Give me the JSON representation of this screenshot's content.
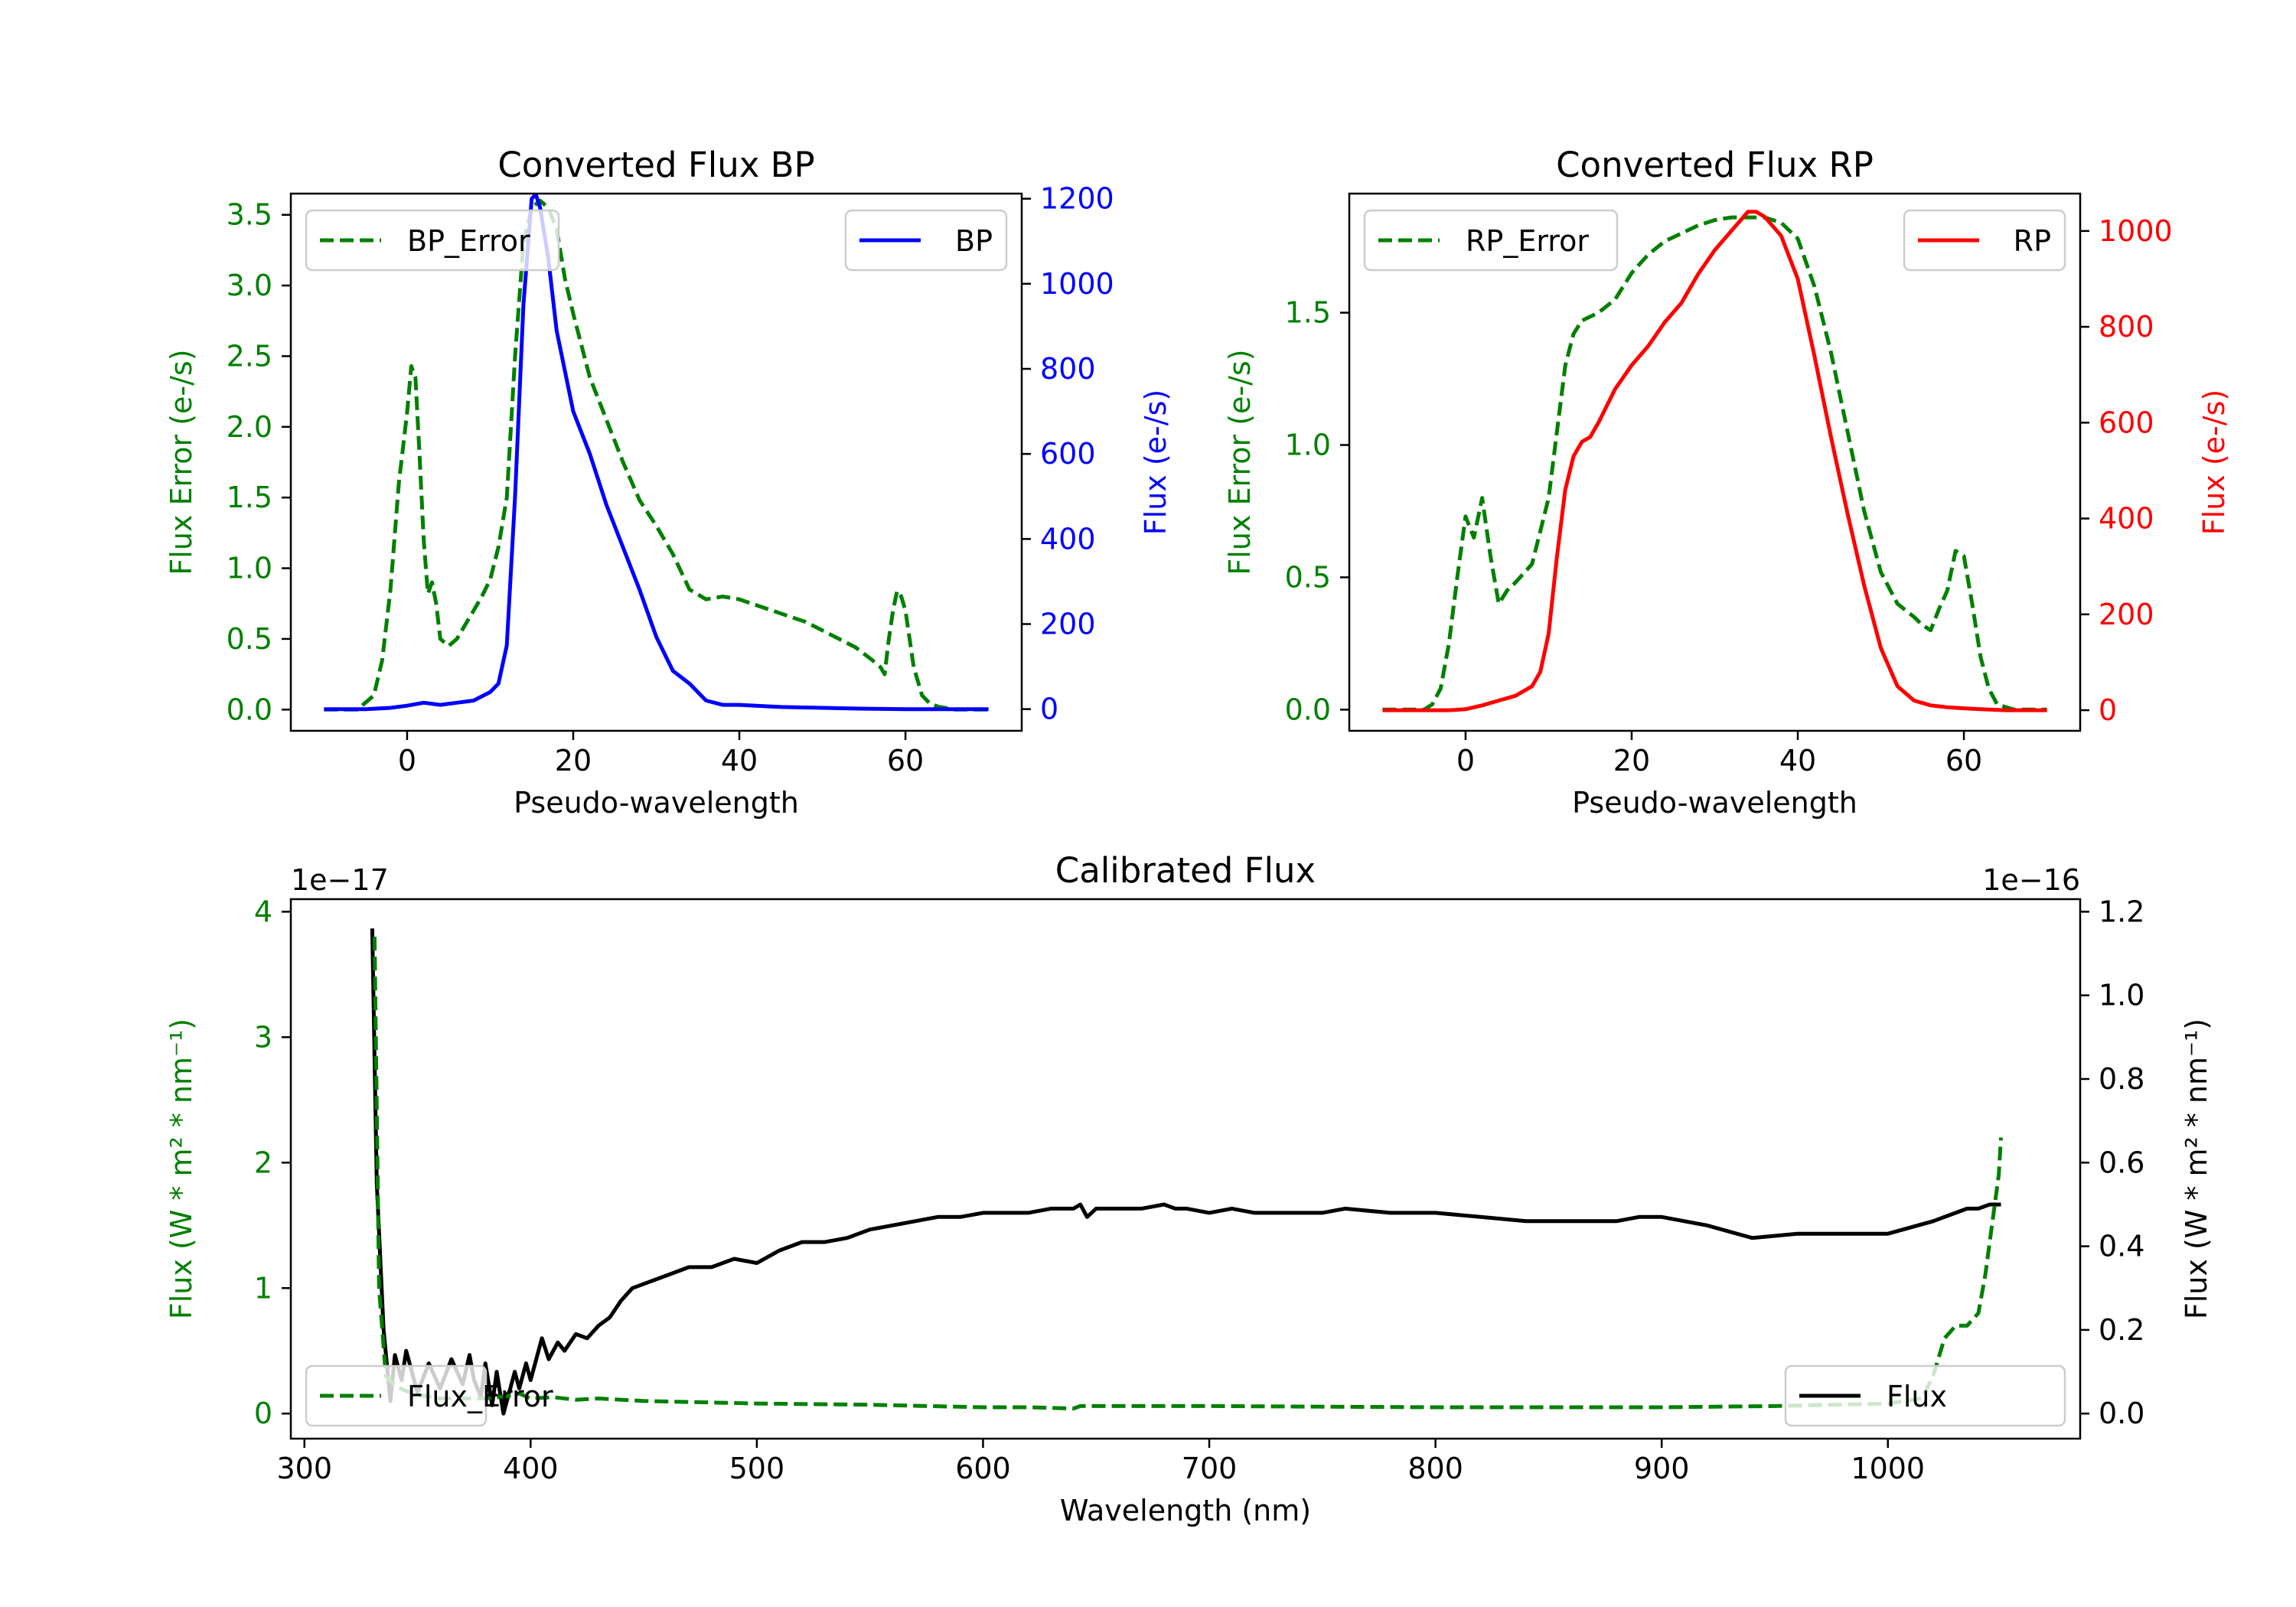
{
  "colors": {
    "green": "#008000",
    "blue": "#0000ff",
    "red": "#ff0000",
    "black": "#000000",
    "legend_edge": "#cccccc"
  },
  "chart_data": [
    {
      "id": "bp",
      "type": "line",
      "title": "Converted Flux BP",
      "xlabel": "Pseudo-wavelength",
      "ylabel_left": "Flux Error (e-/s)",
      "ylabel_right": "Flux (e-/s)",
      "xlim": [
        -14,
        74
      ],
      "ylim_left": [
        -0.15,
        3.65
      ],
      "ylim_right": [
        -51,
        1212
      ],
      "xticks": [
        0,
        20,
        40,
        60
      ],
      "xtick_labels": [
        "0",
        "20",
        "40",
        "60"
      ],
      "yticks_left": [
        0,
        0.5,
        1,
        1.5,
        2,
        2.5,
        3,
        3.5
      ],
      "ytick_labels_left": [
        "0.0",
        "0.5",
        "1.0",
        "1.5",
        "2.0",
        "2.5",
        "3.0",
        "3.5"
      ],
      "yticks_right": [
        0,
        200,
        400,
        600,
        800,
        1000,
        1200
      ],
      "ytick_labels_right": [
        "0",
        "200",
        "400",
        "600",
        "800",
        "1000",
        "1200"
      ],
      "left_color": "#008000",
      "right_color": "#0000ff",
      "legend_left": "top-left",
      "legend_right": "top-right",
      "series": [
        {
          "name": "BP_Error",
          "axis": "left",
          "style": "dashed",
          "color": "#008000",
          "x": [
            -10,
            -6,
            -4,
            -3,
            -2,
            -1,
            0,
            0.5,
            1,
            1.5,
            2,
            2.5,
            3,
            3.5,
            4,
            5,
            6,
            7,
            8,
            9,
            10,
            11,
            12,
            13,
            14,
            15,
            16,
            17,
            18,
            19,
            20,
            22,
            24,
            26,
            28,
            30,
            32,
            34,
            36,
            38,
            40,
            42,
            44,
            46,
            48,
            50,
            52,
            54,
            56,
            57,
            57.5,
            58,
            58.5,
            59,
            59.5,
            60,
            60.5,
            61,
            62,
            63,
            64,
            66,
            68,
            70
          ],
          "y": [
            0,
            0,
            0.1,
            0.35,
            0.85,
            1.6,
            2.1,
            2.43,
            2.35,
            1.8,
            1.2,
            0.82,
            0.9,
            0.75,
            0.5,
            0.45,
            0.5,
            0.6,
            0.7,
            0.8,
            0.92,
            1.15,
            1.5,
            2.5,
            3.3,
            3.55,
            3.6,
            3.55,
            3.4,
            3.05,
            2.8,
            2.35,
            2.05,
            1.75,
            1.48,
            1.3,
            1.1,
            0.85,
            0.78,
            0.8,
            0.78,
            0.74,
            0.7,
            0.66,
            0.62,
            0.56,
            0.5,
            0.44,
            0.35,
            0.3,
            0.25,
            0.5,
            0.7,
            0.84,
            0.8,
            0.7,
            0.5,
            0.3,
            0.1,
            0.04,
            0.02,
            0,
            0,
            0
          ]
        },
        {
          "name": "BP",
          "axis": "right",
          "style": "solid",
          "color": "#0000ff",
          "x": [
            -10,
            -5,
            -2,
            0,
            2,
            4,
            6,
            8,
            10,
            11,
            12,
            13,
            14,
            15,
            15.5,
            16,
            17,
            18,
            20,
            22,
            24,
            26,
            28,
            30,
            32,
            34,
            36,
            38,
            40,
            45,
            50,
            55,
            60,
            65,
            70
          ],
          "y": [
            0,
            0,
            3,
            8,
            15,
            10,
            15,
            20,
            40,
            60,
            150,
            500,
            950,
            1200,
            1210,
            1180,
            1060,
            890,
            700,
            600,
            480,
            380,
            280,
            170,
            90,
            60,
            20,
            10,
            10,
            5,
            3,
            1,
            0,
            0,
            0
          ]
        }
      ]
    },
    {
      "id": "rp",
      "type": "line",
      "title": "Converted Flux RP",
      "xlabel": "Pseudo-wavelength",
      "ylabel_left": "Flux Error (e-/s)",
      "ylabel_right": "Flux (e-/s)",
      "xlim": [
        -14,
        74
      ],
      "ylim_left": [
        -0.08,
        1.95
      ],
      "ylim_right": [
        -43,
        1078
      ],
      "xticks": [
        0,
        20,
        40,
        60
      ],
      "xtick_labels": [
        "0",
        "20",
        "40",
        "60"
      ],
      "yticks_left": [
        0,
        0.5,
        1,
        1.5
      ],
      "ytick_labels_left": [
        "0.0",
        "0.5",
        "1.0",
        "1.5"
      ],
      "yticks_right": [
        0,
        200,
        400,
        600,
        800,
        1000
      ],
      "ytick_labels_right": [
        "0",
        "200",
        "400",
        "600",
        "800",
        "1000"
      ],
      "left_color": "#008000",
      "right_color": "#ff0000",
      "legend_left": "top-left",
      "legend_right": "top-right",
      "series": [
        {
          "name": "RP_Error",
          "axis": "left",
          "style": "dashed",
          "color": "#008000",
          "x": [
            -10,
            -5,
            -4,
            -3,
            -2,
            -1,
            0,
            1,
            2,
            3,
            4,
            5,
            6,
            8,
            10,
            11,
            12,
            13,
            14,
            16,
            18,
            20,
            22,
            24,
            26,
            28,
            30,
            32,
            34,
            36,
            38,
            40,
            42,
            44,
            46,
            48,
            50,
            52,
            54,
            55,
            56,
            57,
            58,
            59,
            60,
            61,
            62,
            63,
            64,
            66,
            70
          ],
          "y": [
            0,
            0,
            0.02,
            0.08,
            0.25,
            0.5,
            0.73,
            0.65,
            0.8,
            0.58,
            0.4,
            0.45,
            0.48,
            0.55,
            0.8,
            1.05,
            1.3,
            1.42,
            1.47,
            1.5,
            1.55,
            1.65,
            1.72,
            1.77,
            1.8,
            1.83,
            1.85,
            1.86,
            1.86,
            1.86,
            1.84,
            1.78,
            1.6,
            1.35,
            1.05,
            0.75,
            0.52,
            0.4,
            0.35,
            0.32,
            0.3,
            0.38,
            0.45,
            0.6,
            0.58,
            0.4,
            0.2,
            0.08,
            0.02,
            0,
            0
          ]
        },
        {
          "name": "RP",
          "axis": "right",
          "style": "solid",
          "color": "#ff0000",
          "x": [
            -10,
            -2,
            0,
            2,
            4,
            6,
            8,
            9,
            10,
            11,
            12,
            13,
            14,
            15,
            16,
            18,
            20,
            22,
            24,
            26,
            28,
            30,
            32,
            34,
            35,
            36,
            38,
            40,
            42,
            44,
            46,
            48,
            50,
            52,
            54,
            56,
            58,
            60,
            62,
            65,
            70
          ],
          "y": [
            0,
            0,
            2,
            10,
            20,
            30,
            50,
            80,
            160,
            320,
            460,
            530,
            560,
            570,
            600,
            670,
            720,
            760,
            810,
            850,
            910,
            960,
            1000,
            1040,
            1040,
            1030,
            990,
            900,
            740,
            570,
            410,
            260,
            130,
            50,
            20,
            10,
            6,
            4,
            2,
            0,
            0
          ]
        }
      ]
    },
    {
      "id": "calibrated",
      "type": "line",
      "title": "Calibrated Flux",
      "xlabel": "Wavelength (nm)",
      "ylabel_left": "Flux (W * m² * nm⁻¹)",
      "ylabel_right": "Flux (W * m² * nm⁻¹)",
      "left_offset_label": "1e−17",
      "right_offset_label": "1e−16",
      "xlim": [
        294,
        1085
      ],
      "ylim_left": [
        -0.2,
        4.1
      ],
      "ylim_right": [
        -0.06,
        1.23
      ],
      "xticks": [
        300,
        400,
        500,
        600,
        700,
        800,
        900,
        1000
      ],
      "xtick_labels": [
        "300",
        "400",
        "500",
        "600",
        "700",
        "800",
        "900",
        "1000"
      ],
      "yticks_left": [
        0,
        1,
        2,
        3,
        4
      ],
      "ytick_labels_left": [
        "0",
        "1",
        "2",
        "3",
        "4"
      ],
      "yticks_right": [
        0,
        0.2,
        0.4,
        0.6,
        0.8,
        1.0,
        1.2
      ],
      "ytick_labels_right": [
        "0.0",
        "0.2",
        "0.4",
        "0.6",
        "0.8",
        "1.0",
        "1.2"
      ],
      "left_color": "#008000",
      "right_color": "#000000",
      "legend_left": "bottom-left",
      "legend_right": "bottom-right",
      "series": [
        {
          "name": "Flux",
          "axis": "right",
          "style": "solid",
          "color": "#000000",
          "x": [
            330,
            332,
            335,
            338,
            340,
            343,
            345,
            350,
            355,
            360,
            365,
            370,
            373,
            375,
            378,
            380,
            383,
            385,
            388,
            390,
            393,
            395,
            398,
            400,
            405,
            408,
            412,
            415,
            420,
            425,
            430,
            435,
            440,
            445,
            450,
            460,
            470,
            480,
            490,
            500,
            510,
            520,
            530,
            540,
            550,
            560,
            570,
            580,
            590,
            600,
            610,
            620,
            630,
            640,
            643,
            646,
            650,
            660,
            670,
            680,
            685,
            690,
            700,
            710,
            720,
            730,
            740,
            750,
            760,
            780,
            800,
            820,
            840,
            860,
            880,
            890,
            900,
            920,
            940,
            960,
            980,
            1000,
            1020,
            1035,
            1040,
            1045,
            1050
          ],
          "y": [
            1.16,
            0.55,
            0.2,
            0.03,
            0.14,
            0.08,
            0.15,
            0.05,
            0.12,
            0.06,
            0.13,
            0.07,
            0.14,
            0.08,
            0.04,
            0.12,
            0.02,
            0.1,
            0.0,
            0.04,
            0.1,
            0.06,
            0.12,
            0.08,
            0.18,
            0.13,
            0.17,
            0.15,
            0.19,
            0.18,
            0.21,
            0.23,
            0.27,
            0.3,
            0.31,
            0.33,
            0.35,
            0.35,
            0.37,
            0.36,
            0.39,
            0.41,
            0.41,
            0.42,
            0.44,
            0.45,
            0.46,
            0.47,
            0.47,
            0.48,
            0.48,
            0.48,
            0.49,
            0.49,
            0.5,
            0.47,
            0.49,
            0.49,
            0.49,
            0.5,
            0.49,
            0.49,
            0.48,
            0.49,
            0.48,
            0.48,
            0.48,
            0.48,
            0.49,
            0.48,
            0.48,
            0.47,
            0.46,
            0.46,
            0.46,
            0.47,
            0.47,
            0.45,
            0.42,
            0.43,
            0.43,
            0.43,
            0.46,
            0.49,
            0.49,
            0.5,
            0.5
          ]
        },
        {
          "name": "Flux_Error",
          "axis": "left",
          "style": "dashed",
          "color": "#008000",
          "x": [
            331,
            333,
            336,
            340,
            345,
            350,
            360,
            370,
            380,
            390,
            395,
            400,
            410,
            420,
            430,
            450,
            500,
            550,
            600,
            620,
            640,
            643,
            650,
            700,
            800,
            900,
            950,
            1000,
            1015,
            1020,
            1025,
            1030,
            1035,
            1040,
            1043,
            1046,
            1049,
            1050
          ],
          "y": [
            3.8,
            1.0,
            0.3,
            0.22,
            0.18,
            0.15,
            0.12,
            0.12,
            0.12,
            0.14,
            0.16,
            0.12,
            0.13,
            0.11,
            0.12,
            0.1,
            0.08,
            0.07,
            0.05,
            0.05,
            0.04,
            0.06,
            0.06,
            0.06,
            0.05,
            0.05,
            0.06,
            0.08,
            0.12,
            0.3,
            0.6,
            0.7,
            0.7,
            0.8,
            1.1,
            1.5,
            1.9,
            2.2
          ]
        }
      ]
    }
  ]
}
